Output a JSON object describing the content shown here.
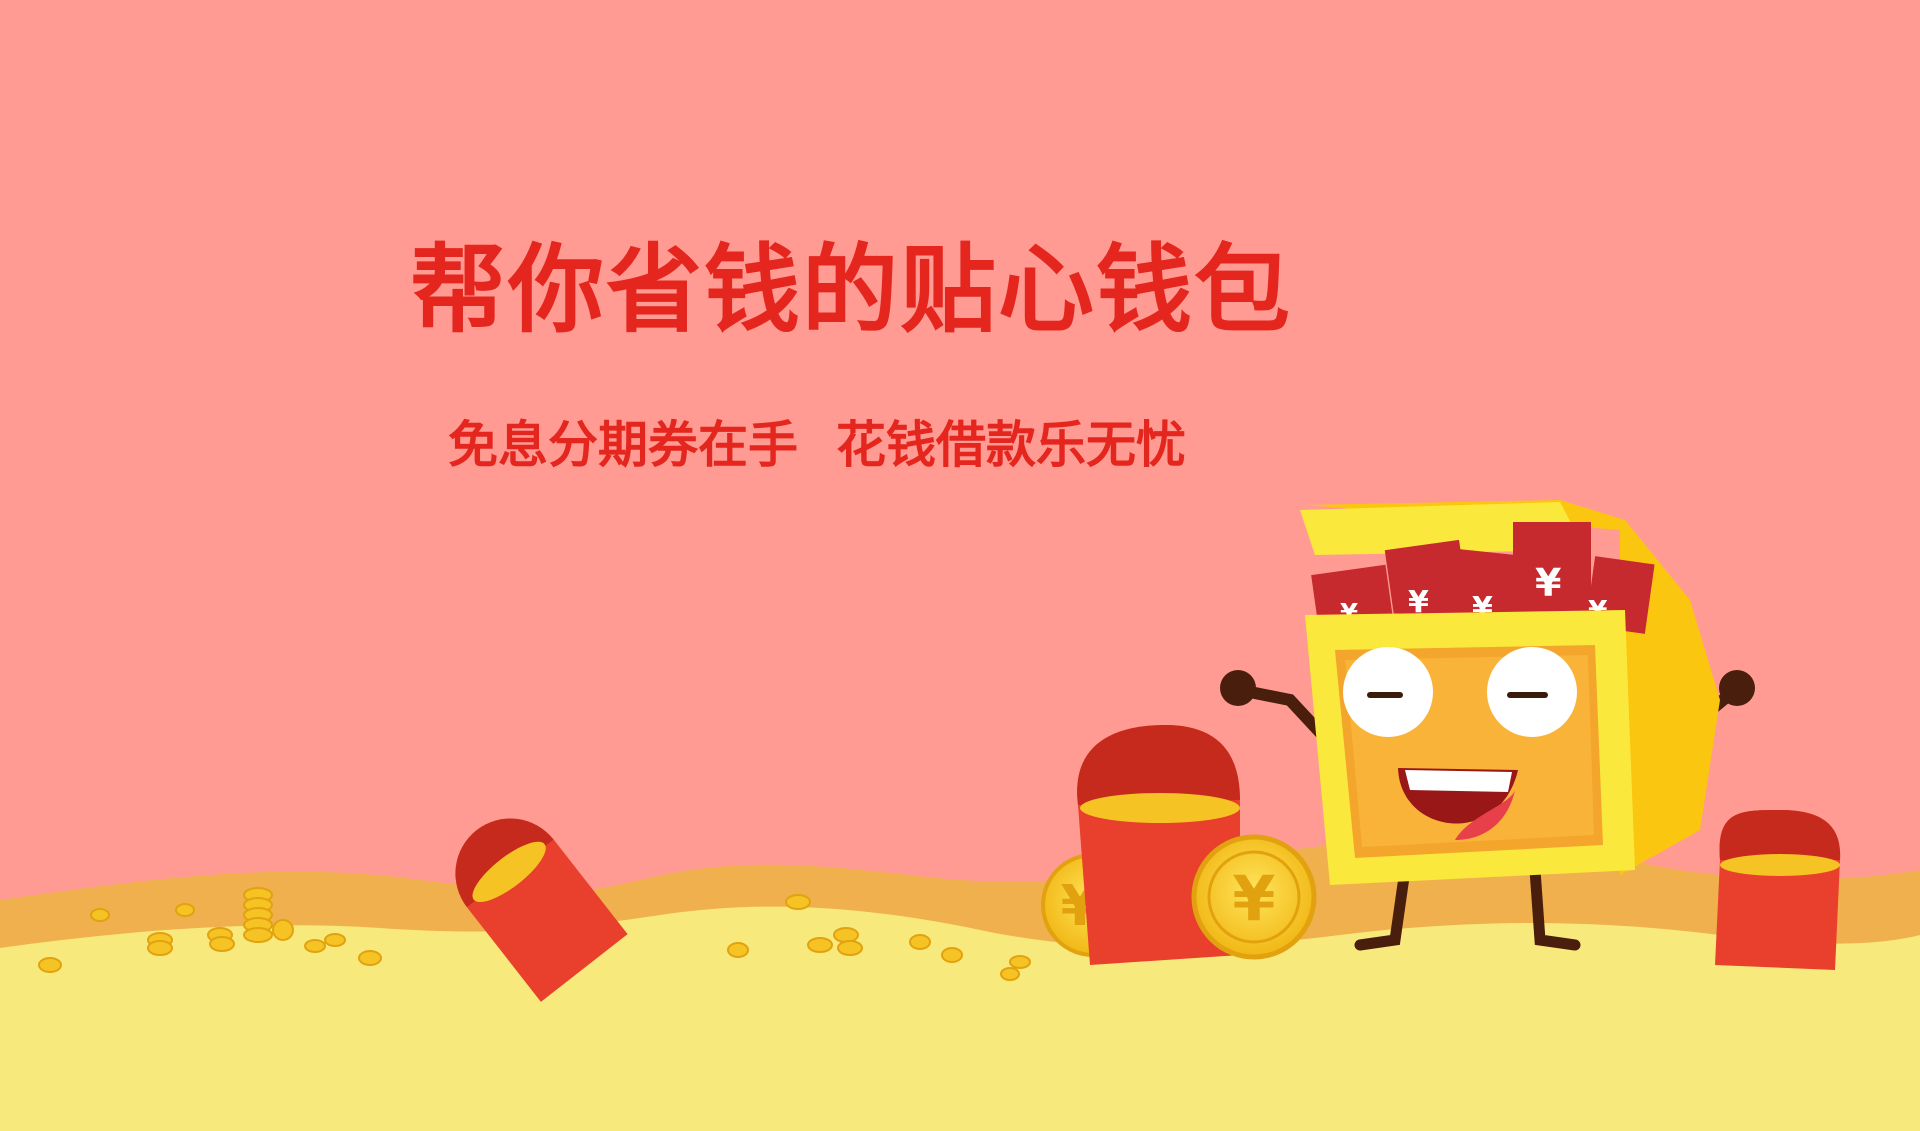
{
  "headline": "帮你省钱的贴心钱包",
  "slogan_part1": "免息分期券在手",
  "slogan_part2": "花钱借款乐无忧",
  "coin_symbol": "¥",
  "colors": {
    "background": "#ff9b92",
    "text": "#e4261e",
    "ground_back": "#f0b04e",
    "ground_front": "#f8e97c",
    "gold": "#f6c324",
    "red_envelope": "#e8402c"
  }
}
